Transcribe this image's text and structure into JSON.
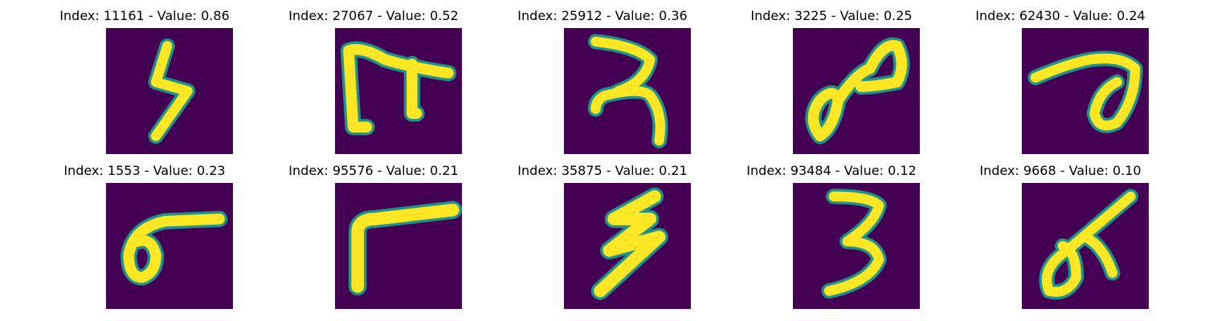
{
  "colors": {
    "background": "#440154",
    "stroke_core": "#fde725",
    "stroke_edge": "#35b779",
    "stroke_mid": "#21918c"
  },
  "panels": [
    {
      "index": "11161",
      "value": "0.86",
      "title": "Index: 11161 - Value: 0.86",
      "glyph": "lightning-s"
    },
    {
      "index": "27067",
      "value": "0.52",
      "title": "Index: 27067 - Value: 0.52",
      "glyph": "pi-shape"
    },
    {
      "index": "25912",
      "value": "0.36",
      "title": "Index: 25912 - Value: 0.36",
      "glyph": "reversed-r"
    },
    {
      "index": "3225",
      "value": "0.25",
      "title": "Index: 3225 - Value: 0.25",
      "glyph": "infinity-loop"
    },
    {
      "index": "62430",
      "value": "0.24",
      "title": "Index: 62430 - Value: 0.24",
      "glyph": "curl"
    },
    {
      "index": "1553",
      "value": "0.23",
      "title": "Index: 1553 - Value: 0.23",
      "glyph": "loop-bar"
    },
    {
      "index": "95576",
      "value": "0.21",
      "title": "Index: 95576 - Value: 0.21",
      "glyph": "corner"
    },
    {
      "index": "35875",
      "value": "0.21",
      "title": "Index: 35875 - Value: 0.21",
      "glyph": "zigzag"
    },
    {
      "index": "93484",
      "value": "0.12",
      "title": "Index: 93484 - Value: 0.12",
      "glyph": "three"
    },
    {
      "index": "9668",
      "value": "0.10",
      "title": "Index: 9668 - Value: 0.10",
      "glyph": "alpha-slash"
    }
  ]
}
